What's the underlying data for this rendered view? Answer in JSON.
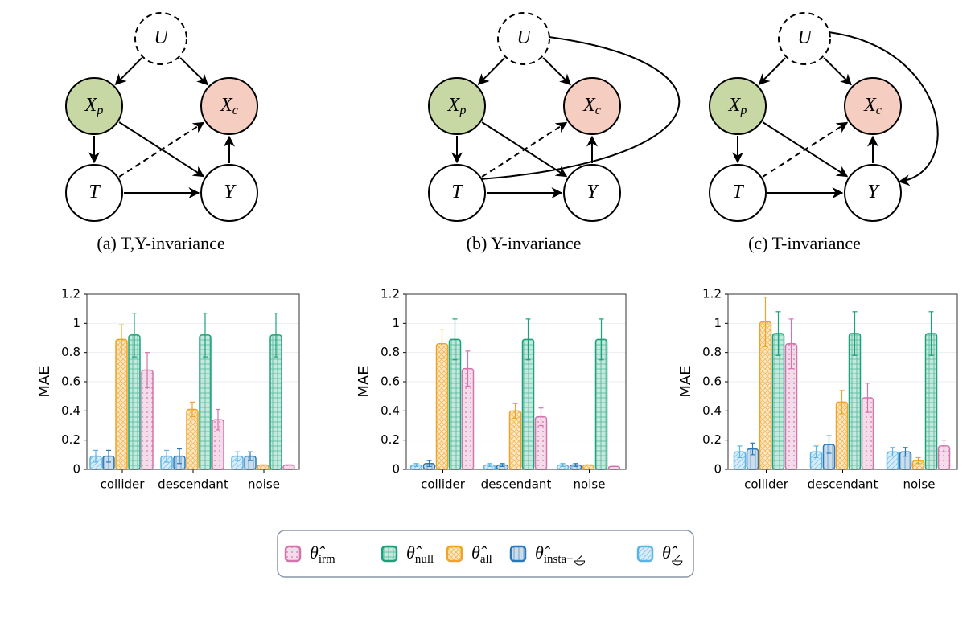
{
  "diagrams": [
    {
      "caption": "(a) T,Y-invariance",
      "nodes": [
        {
          "label": "U"
        },
        {
          "label": "X",
          "sub": "p"
        },
        {
          "label": "X",
          "sub": "c"
        },
        {
          "label": "T"
        },
        {
          "label": "Y"
        }
      ]
    },
    {
      "caption": "(b) Y-invariance",
      "nodes": [
        {
          "label": "U"
        },
        {
          "label": "X",
          "sub": "p"
        },
        {
          "label": "X",
          "sub": "c"
        },
        {
          "label": "T"
        },
        {
          "label": "Y"
        }
      ]
    },
    {
      "caption": "(c) T-invariance",
      "nodes": [
        {
          "label": "U"
        },
        {
          "label": "X",
          "sub": "p"
        },
        {
          "label": "X",
          "sub": "c"
        },
        {
          "label": "T"
        },
        {
          "label": "Y"
        }
      ]
    }
  ],
  "legend": {
    "entries": [
      {
        "symbol": "θ̂",
        "sub": "",
        "color": "#5ab4e5"
      },
      {
        "symbol": "θ̂",
        "sub": "insta−",
        "color": "#2a78b8"
      },
      {
        "symbol": "θ̂",
        "sub": "all",
        "color": "#f0a324"
      },
      {
        "symbol": "θ̂",
        "sub": "null",
        "color": "#1aa37a"
      },
      {
        "symbol": "θ̂",
        "sub": "irm",
        "color": "#d375ad"
      }
    ]
  },
  "chart_data": [
    {
      "type": "bar",
      "ylabel": "MAE",
      "categories": [
        "collider",
        "descendant",
        "noise"
      ],
      "ylim": [
        0,
        1.2
      ],
      "yticks": [
        0,
        0.2,
        0.4,
        0.6,
        0.8,
        1,
        1.2
      ],
      "grid": true,
      "series": [
        {
          "values": [
            0.09,
            0.09,
            0.09
          ],
          "errors": [
            0.04,
            0.04,
            0.03
          ]
        },
        {
          "values": [
            0.09,
            0.09,
            0.09
          ],
          "errors": [
            0.04,
            0.05,
            0.03
          ]
        },
        {
          "values": [
            0.89,
            0.41,
            0.03
          ],
          "errors": [
            0.1,
            0.05,
            0.0
          ]
        },
        {
          "values": [
            0.92,
            0.92,
            0.92
          ],
          "errors": [
            0.15,
            0.15,
            0.15
          ]
        },
        {
          "values": [
            0.68,
            0.34,
            0.03
          ],
          "errors": [
            0.12,
            0.07,
            0.0
          ]
        }
      ]
    },
    {
      "type": "bar",
      "ylabel": "MAE",
      "categories": [
        "collider",
        "descendant",
        "noise"
      ],
      "ylim": [
        0,
        1.2
      ],
      "yticks": [
        0,
        0.2,
        0.4,
        0.6,
        0.8,
        1,
        1.2
      ],
      "grid": true,
      "series": [
        {
          "values": [
            0.03,
            0.03,
            0.03
          ],
          "errors": [
            0.01,
            0.01,
            0.01
          ]
        },
        {
          "values": [
            0.04,
            0.03,
            0.03
          ],
          "errors": [
            0.02,
            0.01,
            0.01
          ]
        },
        {
          "values": [
            0.86,
            0.4,
            0.03
          ],
          "errors": [
            0.1,
            0.05,
            0.0
          ]
        },
        {
          "values": [
            0.89,
            0.89,
            0.89
          ],
          "errors": [
            0.14,
            0.14,
            0.14
          ]
        },
        {
          "values": [
            0.69,
            0.36,
            0.02
          ],
          "errors": [
            0.12,
            0.06,
            0.0
          ]
        }
      ]
    },
    {
      "type": "bar",
      "ylabel": "MAE",
      "categories": [
        "collider",
        "descendant",
        "noise"
      ],
      "ylim": [
        0,
        1.2
      ],
      "yticks": [
        0,
        0.2,
        0.4,
        0.6,
        0.8,
        1,
        1.2
      ],
      "grid": true,
      "series": [
        {
          "values": [
            0.12,
            0.12,
            0.12
          ],
          "errors": [
            0.04,
            0.04,
            0.03
          ]
        },
        {
          "values": [
            0.14,
            0.17,
            0.12
          ],
          "errors": [
            0.04,
            0.06,
            0.03
          ]
        },
        {
          "values": [
            1.01,
            0.46,
            0.06
          ],
          "errors": [
            0.17,
            0.08,
            0.02
          ]
        },
        {
          "values": [
            0.93,
            0.93,
            0.93
          ],
          "errors": [
            0.15,
            0.15,
            0.15
          ]
        },
        {
          "values": [
            0.86,
            0.49,
            0.16
          ],
          "errors": [
            0.17,
            0.1,
            0.04
          ]
        }
      ]
    }
  ]
}
